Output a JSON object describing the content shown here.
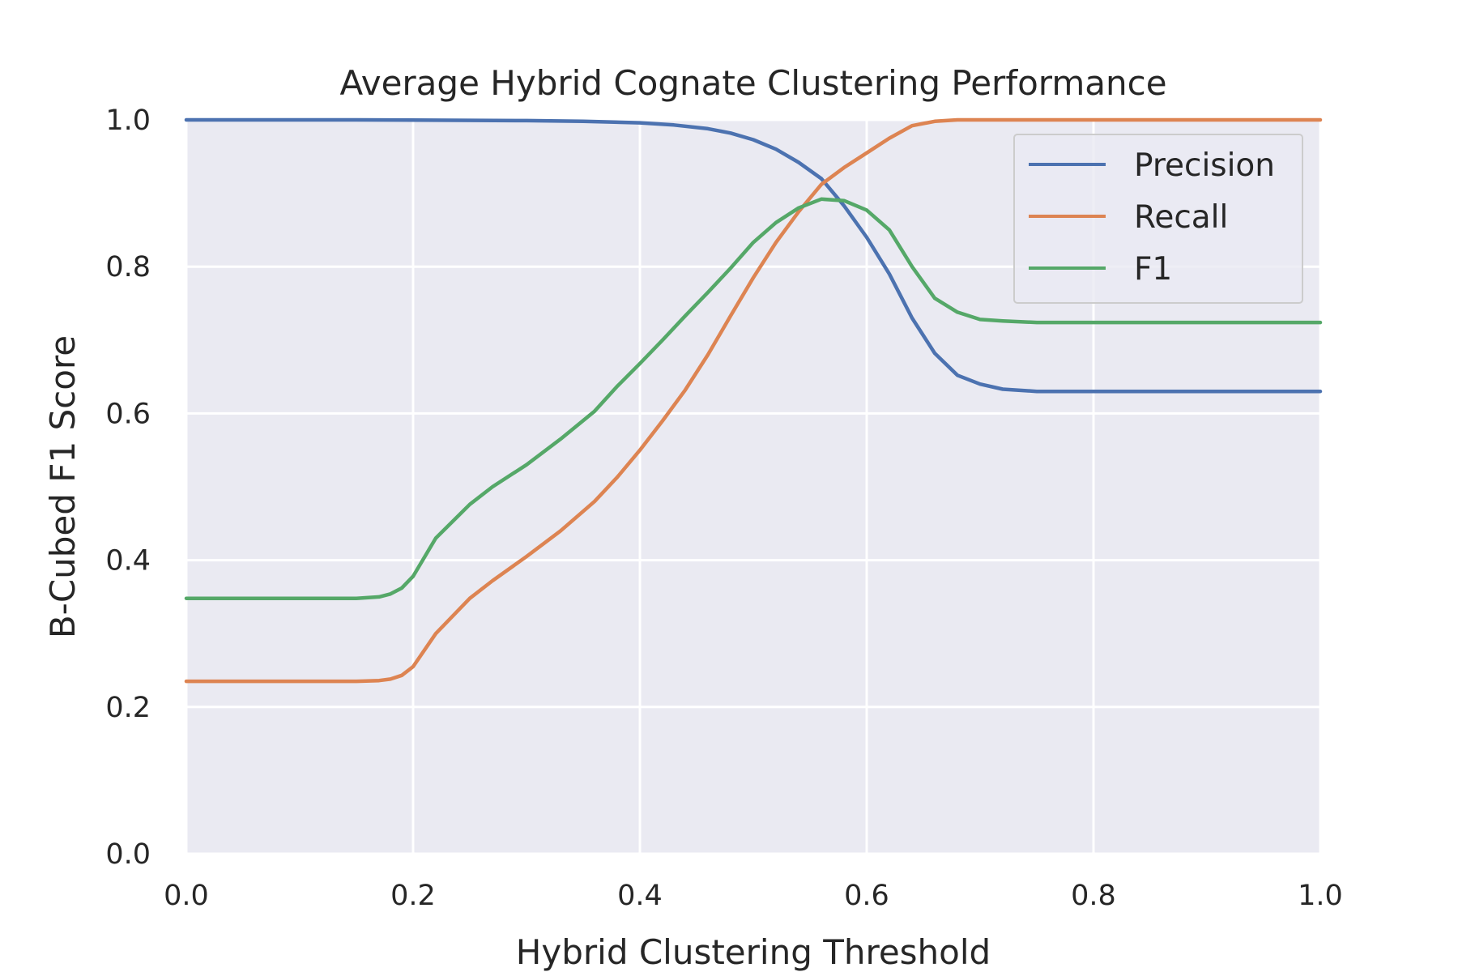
{
  "chart_data": {
    "type": "line",
    "title": "Average Hybrid Cognate Clustering Performance",
    "xlabel": "Hybrid Clustering Threshold",
    "ylabel": "B-Cubed F1 Score",
    "xlim": [
      0.0,
      1.0
    ],
    "ylim": [
      0.0,
      1.0
    ],
    "xticks": [
      "0.0",
      "0.2",
      "0.4",
      "0.6",
      "0.8",
      "1.0"
    ],
    "yticks": [
      "0.0",
      "0.2",
      "0.4",
      "0.6",
      "0.8",
      "1.0"
    ],
    "grid": true,
    "legend_position": "top-right",
    "series": [
      {
        "name": "Precision",
        "color": "#4c72b0",
        "x": [
          0.0,
          0.15,
          0.3,
          0.35,
          0.4,
          0.43,
          0.46,
          0.48,
          0.5,
          0.52,
          0.54,
          0.56,
          0.58,
          0.6,
          0.62,
          0.64,
          0.66,
          0.68,
          0.7,
          0.72,
          0.75,
          0.8,
          0.9,
          1.0
        ],
        "y": [
          1.0,
          1.0,
          0.999,
          0.998,
          0.996,
          0.993,
          0.988,
          0.982,
          0.973,
          0.96,
          0.942,
          0.92,
          0.883,
          0.84,
          0.79,
          0.73,
          0.682,
          0.652,
          0.64,
          0.633,
          0.63,
          0.63,
          0.63,
          0.63
        ]
      },
      {
        "name": "Recall",
        "color": "#dd8452",
        "x": [
          0.0,
          0.15,
          0.17,
          0.18,
          0.19,
          0.2,
          0.22,
          0.25,
          0.27,
          0.3,
          0.33,
          0.36,
          0.38,
          0.4,
          0.42,
          0.44,
          0.46,
          0.48,
          0.5,
          0.52,
          0.54,
          0.56,
          0.58,
          0.6,
          0.62,
          0.64,
          0.66,
          0.68,
          0.7,
          0.72,
          0.8,
          0.9,
          1.0
        ],
        "y": [
          0.235,
          0.235,
          0.236,
          0.238,
          0.243,
          0.255,
          0.3,
          0.348,
          0.372,
          0.405,
          0.44,
          0.48,
          0.513,
          0.55,
          0.59,
          0.632,
          0.68,
          0.733,
          0.785,
          0.833,
          0.875,
          0.912,
          0.935,
          0.955,
          0.975,
          0.992,
          0.998,
          1.0,
          1.0,
          1.0,
          1.0,
          1.0,
          1.0
        ]
      },
      {
        "name": "F1",
        "color": "#55a868",
        "x": [
          0.0,
          0.15,
          0.17,
          0.18,
          0.19,
          0.2,
          0.22,
          0.25,
          0.27,
          0.3,
          0.33,
          0.36,
          0.38,
          0.4,
          0.42,
          0.44,
          0.46,
          0.48,
          0.5,
          0.52,
          0.54,
          0.56,
          0.58,
          0.6,
          0.62,
          0.64,
          0.66,
          0.68,
          0.7,
          0.72,
          0.75,
          0.8,
          0.9,
          1.0
        ],
        "y": [
          0.348,
          0.348,
          0.35,
          0.354,
          0.362,
          0.378,
          0.43,
          0.476,
          0.5,
          0.53,
          0.565,
          0.603,
          0.637,
          0.668,
          0.7,
          0.733,
          0.765,
          0.798,
          0.833,
          0.86,
          0.88,
          0.892,
          0.89,
          0.877,
          0.85,
          0.8,
          0.757,
          0.738,
          0.728,
          0.726,
          0.724,
          0.724,
          0.724,
          0.724
        ]
      }
    ]
  }
}
